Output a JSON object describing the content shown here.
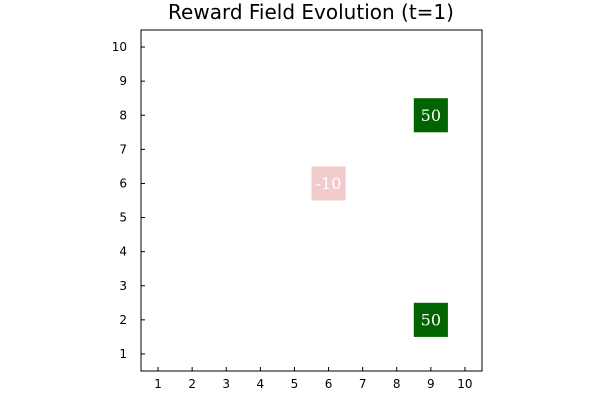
{
  "chart_data": {
    "type": "heatmap",
    "title": "Reward Field Evolution (t=1)",
    "xlabel": "",
    "ylabel": "",
    "xlim": [
      0.5,
      10.5
    ],
    "ylim": [
      0.5,
      10.5
    ],
    "x_ticks": [
      "1",
      "2",
      "3",
      "4",
      "5",
      "6",
      "7",
      "8",
      "9",
      "10"
    ],
    "y_ticks": [
      "1",
      "2",
      "3",
      "4",
      "5",
      "6",
      "7",
      "8",
      "9",
      "10"
    ],
    "grid": false,
    "cells": [
      {
        "x": 6,
        "y": 6,
        "value": -10,
        "label": "-10",
        "color": "#f2cccc"
      },
      {
        "x": 9,
        "y": 8,
        "value": 50,
        "label": "50",
        "color": "#006400"
      },
      {
        "x": 9,
        "y": 2,
        "value": 50,
        "label": "50",
        "color": "#006400"
      }
    ]
  }
}
